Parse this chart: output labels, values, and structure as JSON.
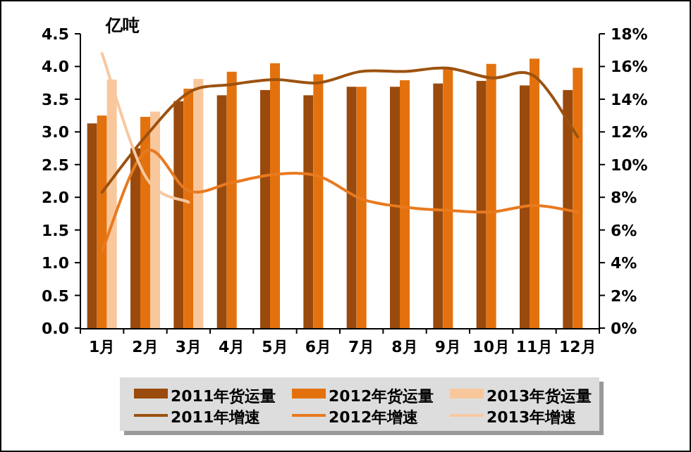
{
  "chart_data": {
    "type": "bar",
    "ylabel": "亿吨",
    "categories": [
      "1月",
      "2月",
      "3月",
      "4月",
      "5月",
      "6月",
      "7月",
      "8月",
      "9月",
      "10月",
      "11月",
      "12月"
    ],
    "series": [
      {
        "name": "2011年货运量",
        "color": "#9a4a0c",
        "values": [
          3.13,
          2.75,
          3.47,
          3.56,
          3.64,
          3.56,
          3.69,
          3.69,
          3.74,
          3.78,
          3.71,
          3.64
        ]
      },
      {
        "name": "2012年货运量",
        "color": "#e3720e",
        "values": [
          3.25,
          3.23,
          3.66,
          3.92,
          4.05,
          3.88,
          3.69,
          3.79,
          3.98,
          4.04,
          4.12,
          3.98
        ]
      },
      {
        "name": "2013年货运量",
        "color": "#f8c89c",
        "values": [
          3.8,
          3.31,
          3.81,
          null,
          null,
          null,
          null,
          null,
          null,
          null,
          null,
          null
        ]
      },
      {
        "name": "2011年增速",
        "type": "line",
        "axis": "y2",
        "color": "#9c520f",
        "values": [
          8.3,
          11.7,
          14.4,
          14.9,
          15.2,
          15.0,
          15.7,
          15.7,
          15.9,
          15.3,
          15.4,
          11.7
        ]
      },
      {
        "name": "2012年增速",
        "type": "line",
        "axis": "y2",
        "color": "#e87a1f",
        "values": [
          4.7,
          10.8,
          8.4,
          8.9,
          9.4,
          9.3,
          7.9,
          7.4,
          7.2,
          7.1,
          7.5,
          7.1
        ]
      },
      {
        "name": "2013年增速",
        "type": "line",
        "axis": "y2",
        "color": "#f8c8a0",
        "values": [
          16.8,
          9.3,
          7.7,
          null,
          null,
          null,
          null,
          null,
          null,
          null,
          null,
          null
        ]
      }
    ],
    "ylim": [
      0,
      4.5
    ],
    "yticks": [
      {
        "value": 0,
        "label": "0.0"
      },
      0.5,
      {
        "value": 1,
        "label": "1.0"
      },
      1.5,
      {
        "value": 2,
        "label": "2.0"
      },
      2.5,
      {
        "value": 3,
        "label": "3.0"
      },
      3.5,
      {
        "value": 4,
        "label": "4.0"
      },
      4.5
    ],
    "y2lim": [
      0,
      18
    ],
    "y2ticks": [
      {
        "value": 0,
        "label": "0%"
      },
      {
        "value": 2,
        "label": "2%"
      },
      {
        "value": 4,
        "label": "4%"
      },
      {
        "value": 6,
        "label": "6%"
      },
      {
        "value": 8,
        "label": "8%"
      },
      {
        "value": 10,
        "label": "10%"
      },
      {
        "value": 12,
        "label": "12%"
      },
      {
        "value": 14,
        "label": "14%"
      },
      {
        "value": 16,
        "label": "16%"
      },
      {
        "value": 18,
        "label": "18%"
      }
    ],
    "legend": "bottom"
  }
}
